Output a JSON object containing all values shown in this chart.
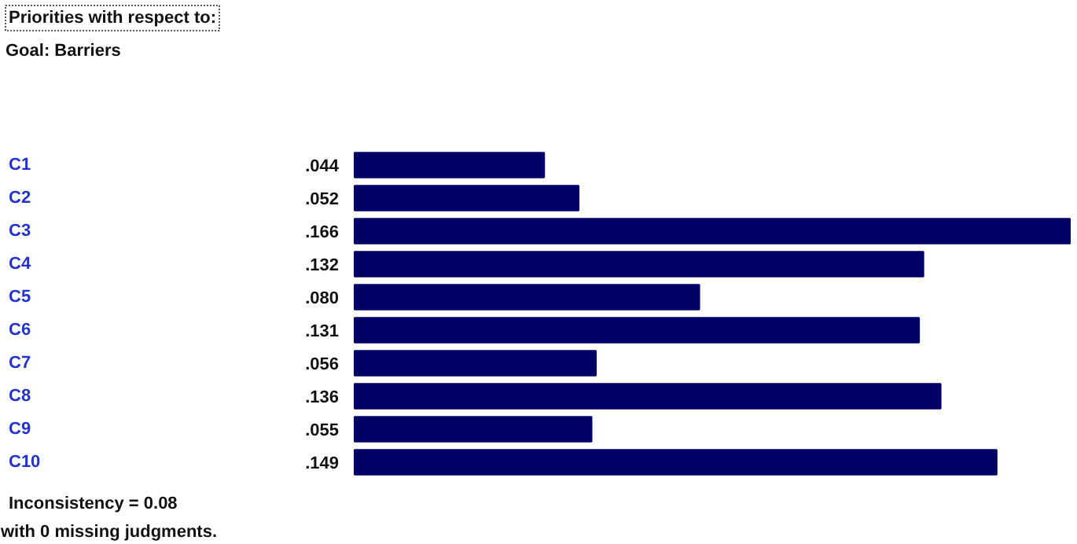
{
  "chart_data": {
    "type": "bar",
    "orientation": "horizontal",
    "title": "Priorities with respect to:",
    "subtitle": "Goal: Barriers",
    "categories": [
      "C1",
      "C2",
      "C3",
      "C4",
      "C5",
      "C6",
      "C7",
      "C8",
      "C9",
      "C10"
    ],
    "values": [
      0.044,
      0.052,
      0.166,
      0.132,
      0.08,
      0.131,
      0.056,
      0.136,
      0.055,
      0.149
    ],
    "value_labels": [
      ".044",
      ".052",
      ".166",
      ".132",
      ".080",
      ".131",
      ".056",
      ".136",
      ".055",
      ".149"
    ],
    "color": "#000066",
    "annotations": [
      "Inconsistency = 0.08",
      "with 0  missing judgments."
    ]
  }
}
